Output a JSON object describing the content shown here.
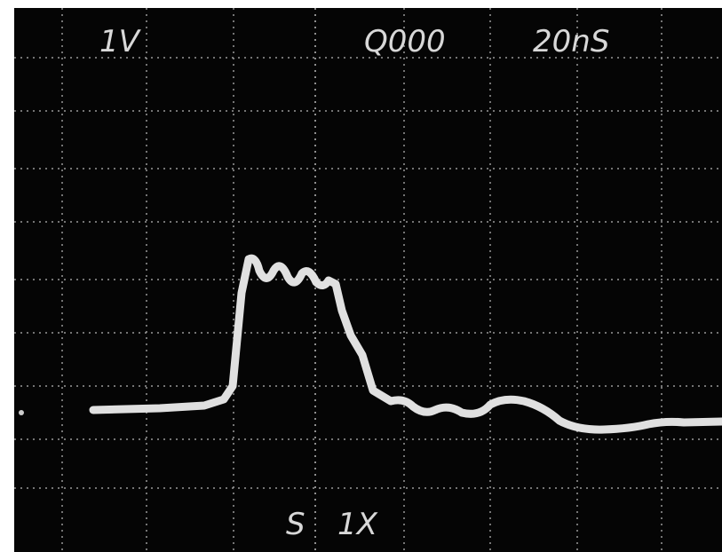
{
  "screen": {
    "volts_per_div": "1V",
    "counter": "Q000",
    "time_per_div": "20nS",
    "source": "S",
    "probe": "1X"
  }
}
